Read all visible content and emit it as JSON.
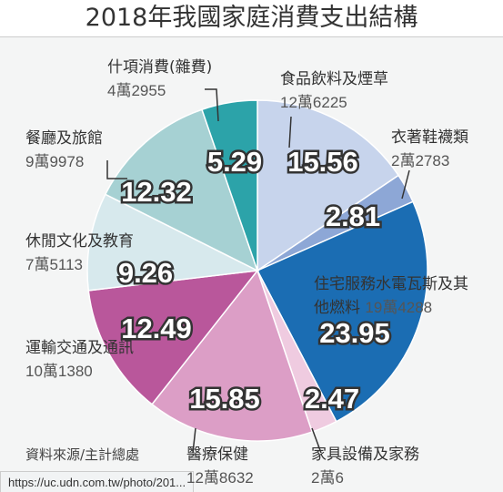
{
  "chart_data": {
    "type": "pie",
    "title": "2018年我國家庭消費支出結構",
    "categories": [
      "食品飲料及煙草",
      "衣著鞋襪類",
      "住宅服務水電瓦斯及其他燃料",
      "家具設備及家務",
      "醫療保健",
      "運輸交通及通訊",
      "休閒文化及教育",
      "餐廳及旅館",
      "什項消費(雜費)"
    ],
    "amounts": [
      "12萬6225",
      "2萬2783",
      "19萬4288",
      "2萬6",
      "12萬8632",
      "10萬1380",
      "7萬5113",
      "9萬9978",
      "4萬2955"
    ],
    "values": [
      15.56,
      2.81,
      23.95,
      2.47,
      15.85,
      12.49,
      9.26,
      12.32,
      5.29
    ],
    "colors": [
      "#c7d4ec",
      "#8da7d6",
      "#1b6db3",
      "#efcbe0",
      "#dc9ec6",
      "#b9579b",
      "#d7e9ed",
      "#a6d1d3",
      "#2ca3a9"
    ],
    "source": "資料來源/主計總處"
  },
  "url": "https://uc.udn.com.tw/photo/201..."
}
